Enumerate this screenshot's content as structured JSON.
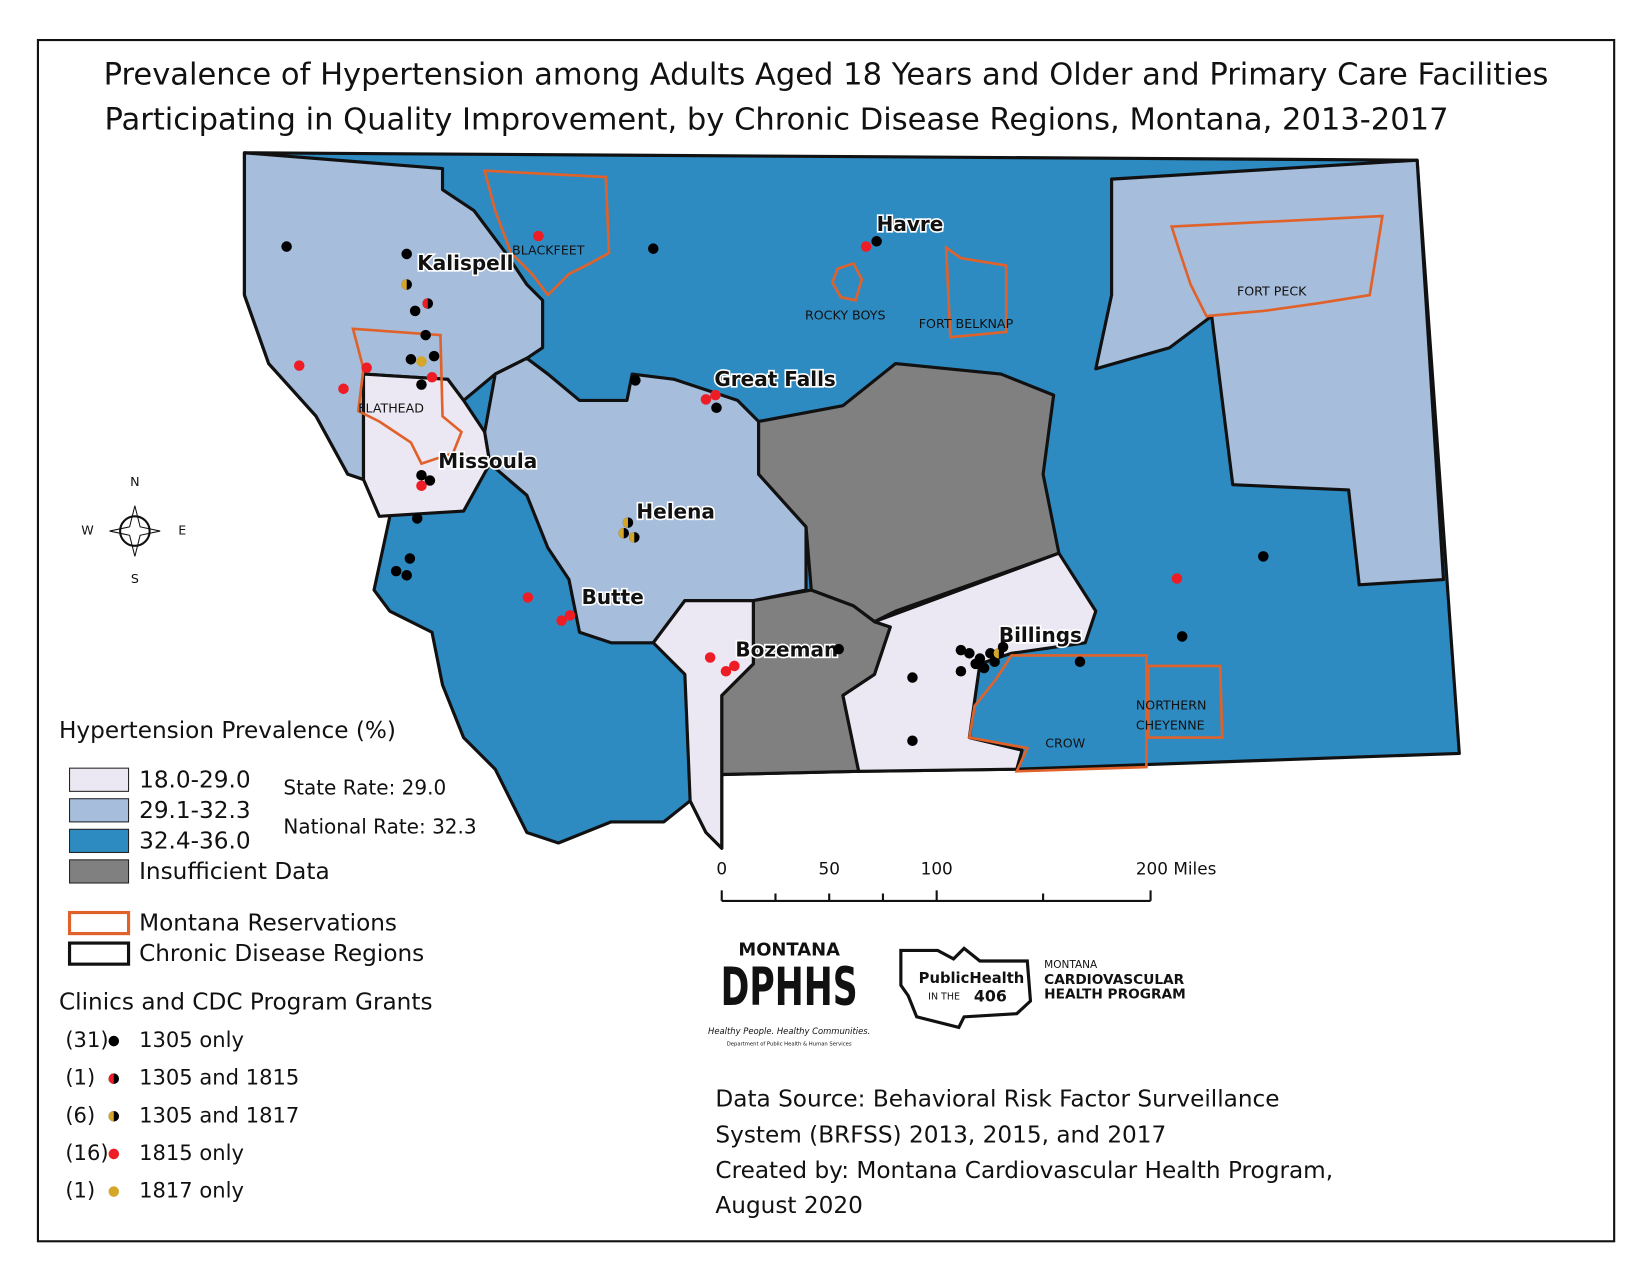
{
  "title": [
    "Prevalence of Hypertension among Adults Aged 18 Years and Older and Primary Care Facilities",
    "Participating in Quality Improvement, by Chronic Disease Regions, Montana, 2013-2017"
  ],
  "cities": [
    "Kalispell",
    "Havre",
    "Great Falls",
    "Missoula",
    "Helena",
    "Butte",
    "Bozeman",
    "Billings"
  ],
  "reservation_labels": [
    "BLACKFEET",
    "ROCKY BOYS",
    "FORT BELKNAP",
    "FORT PECK",
    "FLATHEAD",
    "CROW",
    "NORTHERN",
    "CHEYENNE"
  ],
  "compass": [
    "N",
    "S",
    "E",
    "W"
  ],
  "legend": {
    "prevalence_title": "Hypertension Prevalence (%)",
    "classes": [
      "18.0-29.0",
      "29.1-32.3",
      "32.4-36.0",
      "Insufficient Data"
    ],
    "state_rate": "State Rate: 29.0",
    "national_rate": "National Rate: 32.3",
    "boundaries": [
      "Montana Reservations",
      "Chronic Disease Regions"
    ],
    "clinics_title": "Clinics and CDC Program Grants",
    "clinics": [
      {
        "count": "(31)",
        "label": "1305 only"
      },
      {
        "count": "(1)",
        "label": "1305 and 1815"
      },
      {
        "count": "(6)",
        "label": "1305 and 1817"
      },
      {
        "count": "(16)",
        "label": "1815 only"
      },
      {
        "count": "(1)",
        "label": "1817 only"
      }
    ]
  },
  "scale": [
    "0",
    "50",
    "100",
    "200 Miles"
  ],
  "logos": {
    "dphhs": [
      "MONTANA",
      "DPHHS",
      "Healthy People. Healthy Communities.",
      "Department of Public Health & Human Services"
    ],
    "cvh": [
      "PublicHealth",
      "IN THE",
      "406",
      "MONTANA",
      "CARDIOVASCULAR",
      "HEALTH PROGRAM"
    ]
  },
  "source": [
    "Data Source: Behavioral Risk Factor Surveillance",
    "System (BRFSS) 2013, 2015, and 2017",
    "Created by: Montana Cardiovascular Health Program,",
    "August 2020"
  ]
}
